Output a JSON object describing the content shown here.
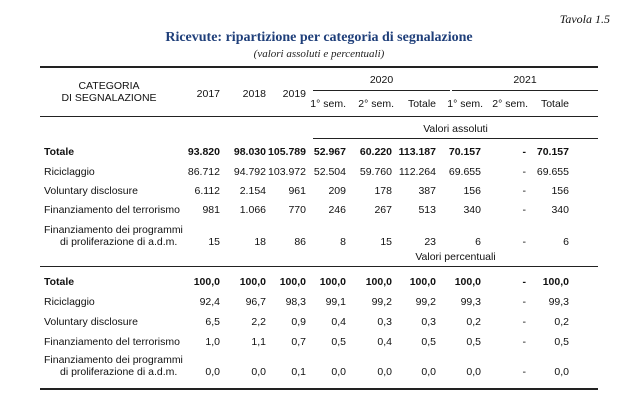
{
  "tavola": "Tavola 1.5",
  "title": "Ricevute: ripartizione per categoria di segnalazione",
  "subtitle": "(valori assoluti e percentuali)",
  "header": {
    "category_line1": "CATEGORIA",
    "category_line2": "DI SEGNALAZIONE",
    "y2017": "2017",
    "y2018": "2018",
    "y2019": "2019",
    "y2020": "2020",
    "y2021": "2021",
    "sem1_2020": "1° sem.",
    "sem2_2020": "2° sem.",
    "tot_2020": "Totale",
    "sem1_2021": "1° sem.",
    "sem2_2021": "2° sem.",
    "tot_2021": "Totale"
  },
  "section_abs": "Valori assoluti",
  "section_pct": "Valori percentuali",
  "abs_rows": [
    {
      "label": "Totale",
      "label2": "",
      "bold": true,
      "values": [
        "93.820",
        "98.030",
        "105.789",
        "52.967",
        "60.220",
        "113.187",
        "70.157",
        "-",
        "70.157"
      ]
    },
    {
      "label": "Riciclaggio",
      "label2": "",
      "bold": false,
      "values": [
        "86.712",
        "94.792",
        "103.972",
        "52.504",
        "59.760",
        "112.264",
        "69.655",
        "-",
        "69.655"
      ]
    },
    {
      "label": "Voluntary disclosure",
      "label2": "",
      "bold": false,
      "values": [
        "6.112",
        "2.154",
        "961",
        "209",
        "178",
        "387",
        "156",
        "-",
        "156"
      ]
    },
    {
      "label": "Finanziamento del terrorismo",
      "label2": "",
      "bold": false,
      "values": [
        "981",
        "1.066",
        "770",
        "246",
        "267",
        "513",
        "340",
        "-",
        "340"
      ]
    },
    {
      "label": "Finanziamento dei programmi",
      "label2": "di proliferazione di a.d.m.",
      "bold": false,
      "values": [
        "15",
        "18",
        "86",
        "8",
        "15",
        "23",
        "6",
        "-",
        "6"
      ]
    }
  ],
  "pct_rows": [
    {
      "label": "Totale",
      "label2": "",
      "bold": true,
      "values": [
        "100,0",
        "100,0",
        "100,0",
        "100,0",
        "100,0",
        "100,0",
        "100,0",
        "-",
        "100,0"
      ]
    },
    {
      "label": "Riciclaggio",
      "label2": "",
      "bold": false,
      "values": [
        "92,4",
        "96,7",
        "98,3",
        "99,1",
        "99,2",
        "99,2",
        "99,3",
        "-",
        "99,3"
      ]
    },
    {
      "label": "Voluntary disclosure",
      "label2": "",
      "bold": false,
      "values": [
        "6,5",
        "2,2",
        "0,9",
        "0,4",
        "0,3",
        "0,3",
        "0,2",
        "-",
        "0,2"
      ]
    },
    {
      "label": "Finanziamento del terrorismo",
      "label2": "",
      "bold": false,
      "values": [
        "1,0",
        "1,1",
        "0,7",
        "0,5",
        "0,4",
        "0,5",
        "0,5",
        "-",
        "0,5"
      ]
    },
    {
      "label": "Finanziamento dei programmi",
      "label2": "di proliferazione di a.d.m.",
      "bold": false,
      "values": [
        "0,0",
        "0,0",
        "0,1",
        "0,0",
        "0,0",
        "0,0",
        "0,0",
        "-",
        "0,0"
      ]
    }
  ]
}
